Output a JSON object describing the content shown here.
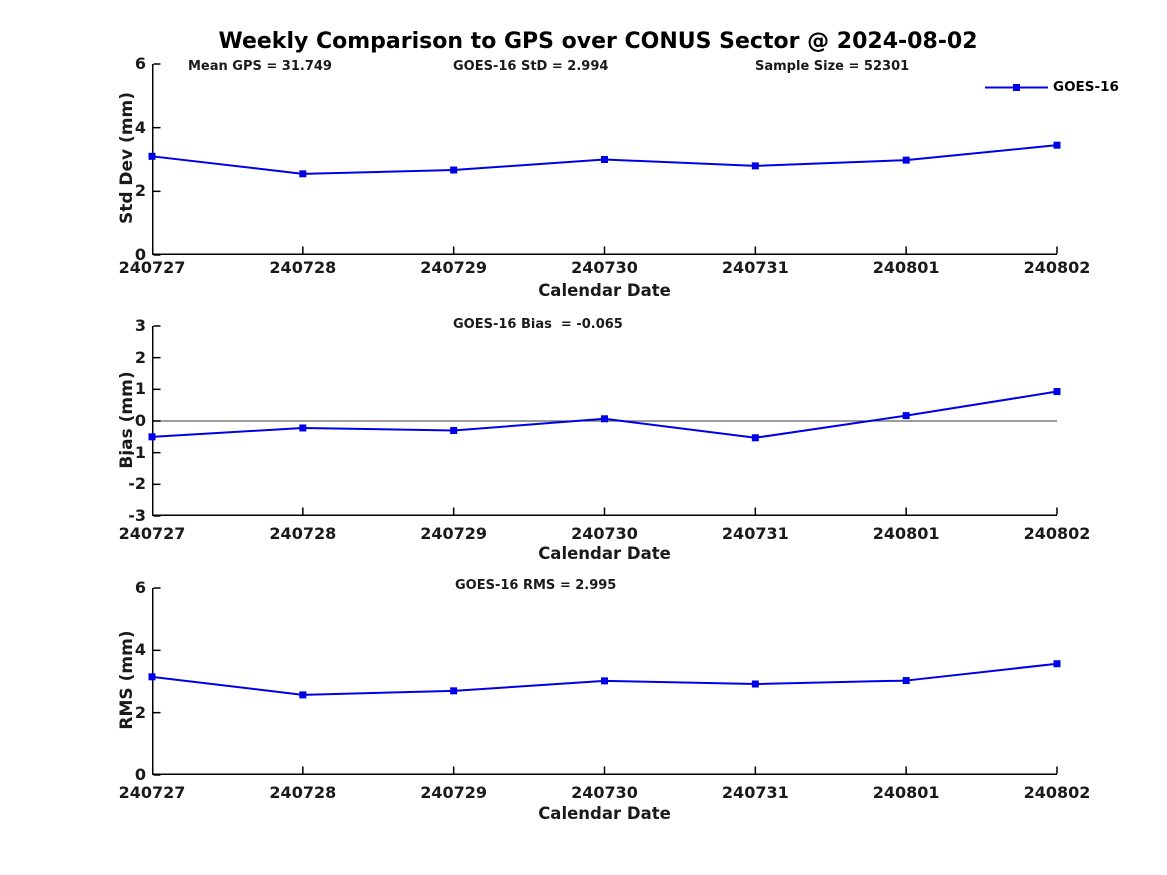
{
  "title": "Weekly Comparison to GPS over CONUS Sector @ 2024-08-02",
  "legend": {
    "label": "GOES-16"
  },
  "colors": {
    "series": "#0000E6",
    "zero_line": "#606060",
    "axis": "#000000",
    "text": "#1a1a1a"
  },
  "chart_data": [
    {
      "type": "line",
      "name": "std-dev",
      "title": "",
      "ylabel": "Std Dev (mm)",
      "xlabel": "Calendar Date",
      "ylim": [
        0,
        6
      ],
      "yticks": [
        0,
        2,
        4,
        6
      ],
      "grid": false,
      "legend_position": "top-right-outside",
      "categories": [
        "240727",
        "240728",
        "240729",
        "240730",
        "240731",
        "240801",
        "240802"
      ],
      "series": [
        {
          "name": "GOES-16",
          "values": [
            3.1,
            2.55,
            2.67,
            3.0,
            2.8,
            2.98,
            3.45
          ]
        }
      ],
      "annotations": [
        "Mean GPS = 31.749",
        "GOES-16 StD = 2.994",
        "Sample Size = 52301"
      ]
    },
    {
      "type": "line",
      "name": "bias",
      "title": "",
      "ylabel": "Bias (mm)",
      "xlabel": "Calendar Date",
      "ylim": [
        -3,
        3
      ],
      "yticks": [
        -3,
        -2,
        -1,
        0,
        1,
        2,
        3
      ],
      "zero_line": true,
      "grid": false,
      "categories": [
        "240727",
        "240728",
        "240729",
        "240730",
        "240731",
        "240801",
        "240802"
      ],
      "series": [
        {
          "name": "GOES-16",
          "values": [
            -0.5,
            -0.22,
            -0.3,
            0.07,
            -0.53,
            0.17,
            0.93
          ]
        }
      ],
      "annotations": [
        "GOES-16 Bias  = -0.065"
      ]
    },
    {
      "type": "line",
      "name": "rms",
      "title": "",
      "ylabel": "RMS (mm)",
      "xlabel": "Calendar Date",
      "ylim": [
        0,
        6
      ],
      "yticks": [
        0,
        2,
        4,
        6
      ],
      "grid": false,
      "categories": [
        "240727",
        "240728",
        "240729",
        "240730",
        "240731",
        "240801",
        "240802"
      ],
      "series": [
        {
          "name": "GOES-16",
          "values": [
            3.15,
            2.57,
            2.7,
            3.02,
            2.92,
            3.03,
            3.57
          ]
        }
      ],
      "annotations": [
        "GOES-16 RMS = 2.995"
      ]
    }
  ]
}
